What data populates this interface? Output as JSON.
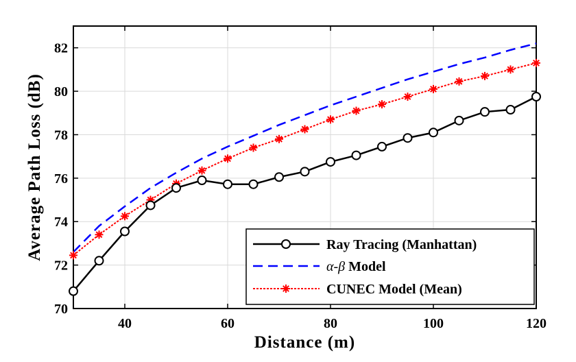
{
  "chart_data": {
    "type": "line",
    "xlabel": "Distance (m)",
    "ylabel": "Average Path Loss (dB)",
    "xlim": [
      30,
      120
    ],
    "ylim": [
      70,
      83
    ],
    "xticks": [
      "40",
      "60",
      "80",
      "100",
      "120"
    ],
    "yticks": [
      "70",
      "72",
      "74",
      "76",
      "78",
      "80",
      "82"
    ],
    "grid": true,
    "legend_position": "bottom-right",
    "series": [
      {
        "name": "Ray Tracing (Manhattan)",
        "color": "#000000",
        "style": "solid-circle",
        "x": [
          30,
          35,
          40,
          45,
          50,
          55,
          60,
          65,
          70,
          75,
          80,
          85,
          90,
          95,
          100,
          105,
          110,
          115,
          120
        ],
        "values": [
          70.8,
          72.2,
          73.55,
          74.75,
          75.55,
          75.9,
          75.72,
          75.72,
          76.05,
          76.3,
          76.75,
          77.05,
          77.45,
          77.85,
          78.1,
          78.65,
          79.05,
          79.15,
          79.75
        ]
      },
      {
        "name_prefix": "α-β",
        "name_suffix": " Model",
        "color": "#0000ff",
        "style": "dashed",
        "x": [
          30,
          35,
          40,
          45,
          50,
          55,
          60,
          65,
          70,
          75,
          80,
          85,
          90,
          95,
          100,
          105,
          110,
          115,
          120
        ],
        "values": [
          72.6,
          73.8,
          74.7,
          75.55,
          76.25,
          76.9,
          77.45,
          77.95,
          78.45,
          78.9,
          79.35,
          79.75,
          80.15,
          80.55,
          80.9,
          81.25,
          81.55,
          81.9,
          82.2
        ]
      },
      {
        "name": "CUNEC Model (Mean)",
        "color": "#ff0000",
        "style": "dotted-star",
        "x": [
          30,
          35,
          40,
          45,
          50,
          55,
          60,
          65,
          70,
          75,
          80,
          85,
          90,
          95,
          100,
          105,
          110,
          115,
          120
        ],
        "values": [
          72.45,
          73.4,
          74.25,
          75.0,
          75.75,
          76.35,
          76.9,
          77.4,
          77.8,
          78.25,
          78.7,
          79.1,
          79.4,
          79.75,
          80.1,
          80.45,
          80.7,
          81.0,
          81.3
        ]
      }
    ]
  }
}
